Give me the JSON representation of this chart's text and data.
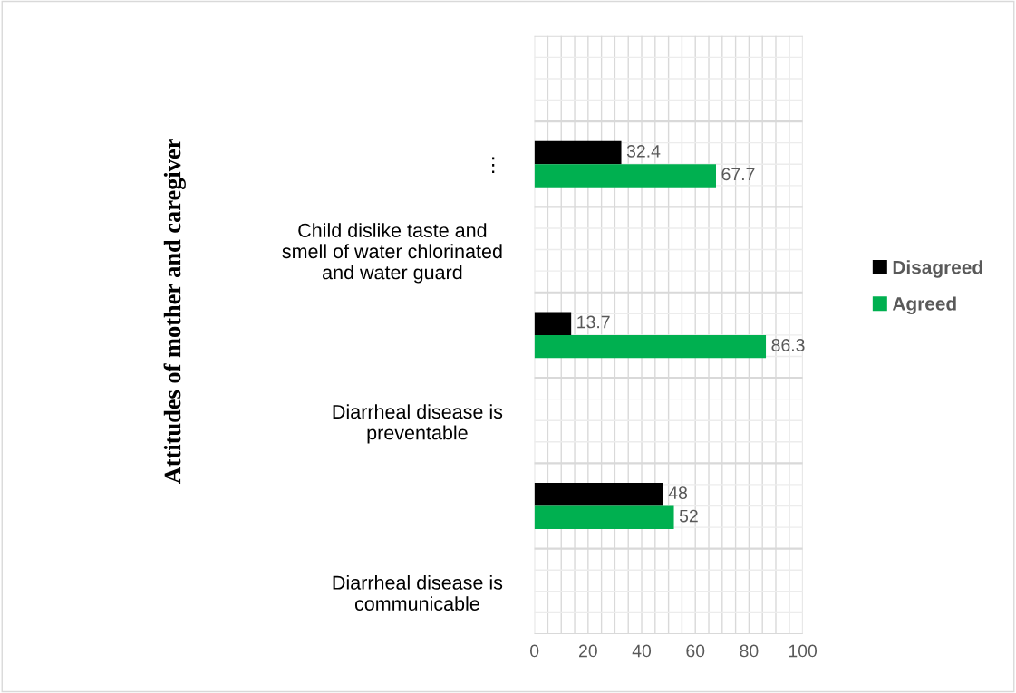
{
  "chart_data": {
    "type": "bar",
    "orientation": "horizontal",
    "ylabel": "Attitudes of mother and caregiver",
    "categories": [
      null,
      "⋮",
      "Child dislike taste and\nsmell of water chlorinated\nand water guard",
      null,
      "Diarrheal disease is\npreventable",
      null,
      "Diarrheal disease is\ncommunicable"
    ],
    "series": [
      {
        "name": "Disagreed",
        "color": "#000000",
        "values": [
          null,
          32.4,
          null,
          13.7,
          null,
          48,
          null
        ]
      },
      {
        "name": "Agreed",
        "color": "#00b050",
        "values": [
          null,
          67.7,
          null,
          86.3,
          null,
          52,
          null
        ]
      }
    ],
    "xlim": [
      0,
      100
    ],
    "xticks": [
      0,
      20,
      40,
      60,
      80,
      100
    ],
    "grid": true,
    "data_labels": true,
    "legend": "right"
  }
}
